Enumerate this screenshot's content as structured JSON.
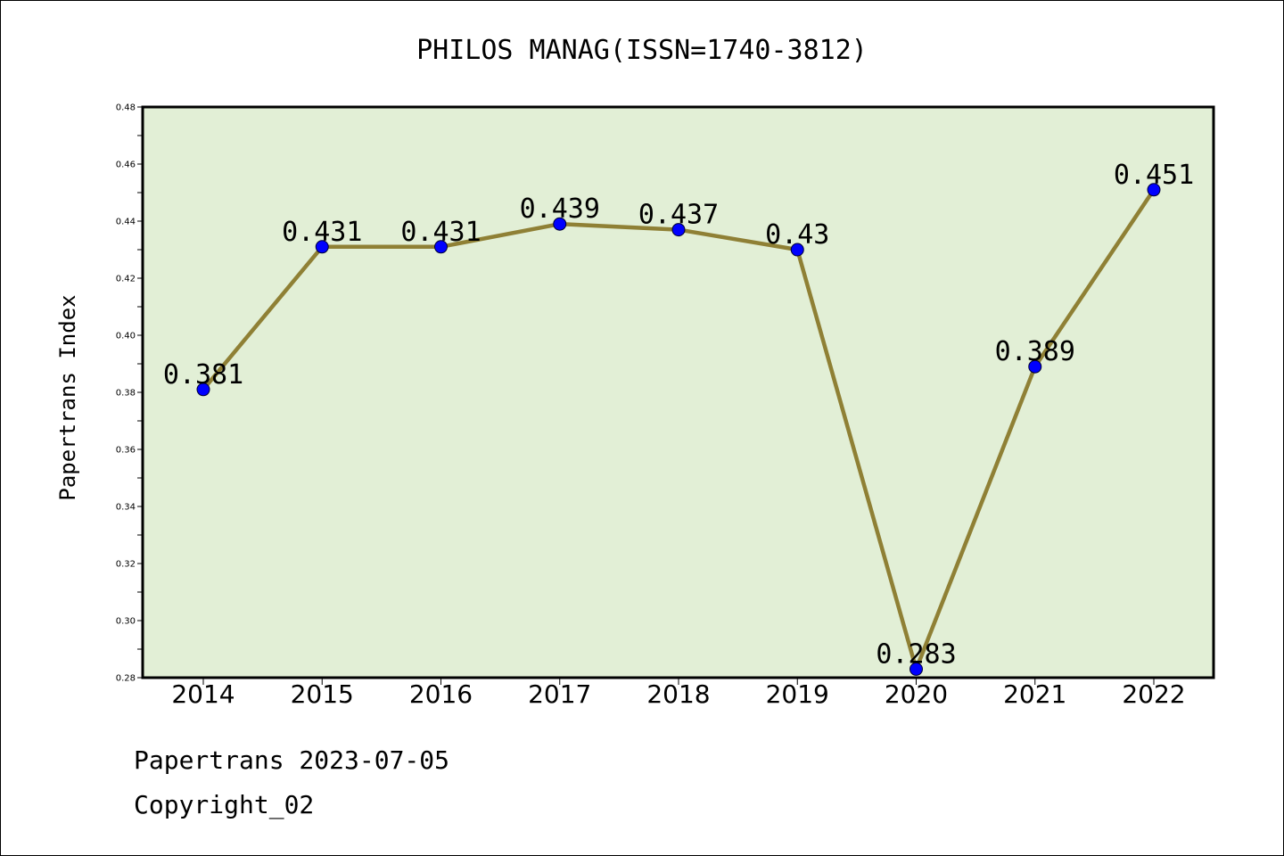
{
  "chart_data": {
    "type": "line",
    "title": "PHILOS MANAG(ISSN=1740-3812)",
    "xlabel": "",
    "ylabel": "Papertrans Index",
    "categories": [
      "2014",
      "2015",
      "2016",
      "2017",
      "2018",
      "2019",
      "2020",
      "2021",
      "2022"
    ],
    "series": [
      {
        "values": [
          0.381,
          0.431,
          0.431,
          0.439,
          0.437,
          0.43,
          0.283,
          0.389,
          0.451
        ],
        "labels": [
          "0.381",
          "0.431",
          "0.431",
          "0.439",
          "0.437",
          "0.43",
          "0.283",
          "0.389",
          "0.451"
        ]
      }
    ],
    "ylim": [
      0.28,
      0.48
    ],
    "yticks": [
      "0.28",
      "0.30",
      "0.32",
      "0.34",
      "0.36",
      "0.38",
      "0.40",
      "0.42",
      "0.44",
      "0.46",
      "0.48"
    ],
    "grid": false,
    "legend": "none"
  },
  "colors": {
    "plot_background": "#e2efd6",
    "line": "#8f8035",
    "marker": "#0000ff",
    "frame": "#000000"
  },
  "footer": {
    "line1": "Papertrans 2023-07-05",
    "line2": "Copyright_02"
  }
}
